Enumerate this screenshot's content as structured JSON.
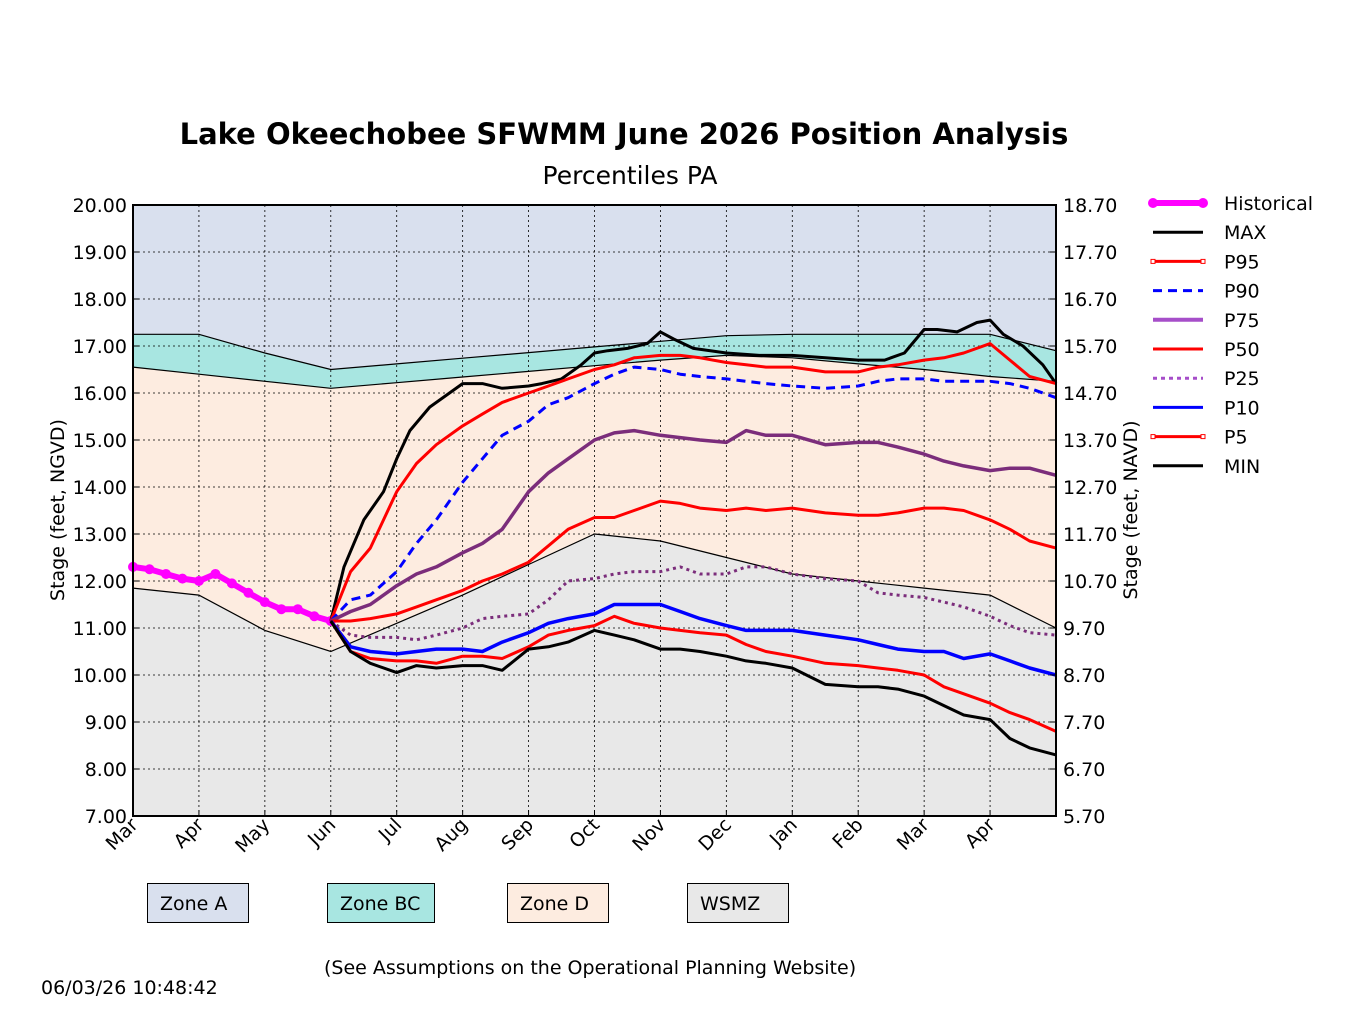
{
  "chart_data": {
    "type": "line",
    "title": "Lake Okeechobee SFWMM June 2026 Position Analysis",
    "subtitle": "Percentiles PA",
    "ylabel": "Stage (feet, NGVD)",
    "ylabel_right": "Stage (feet, NAVD)",
    "ylim": [
      7.0,
      20.0
    ],
    "ylim_right": [
      5.7,
      18.7
    ],
    "yticks": [
      "7.00",
      "8.00",
      "9.00",
      "10.00",
      "11.00",
      "12.00",
      "13.00",
      "14.00",
      "15.00",
      "16.00",
      "17.00",
      "18.00",
      "19.00",
      "20.00"
    ],
    "yticks_right": [
      "5.70",
      "6.70",
      "7.70",
      "8.70",
      "9.70",
      "10.70",
      "11.70",
      "12.70",
      "13.70",
      "14.70",
      "15.70",
      "16.70",
      "17.70",
      "18.70"
    ],
    "xticks": [
      "Mar",
      "Apr",
      "May",
      "Jun",
      "Jul",
      "Aug",
      "Sep",
      "Oct",
      "Nov",
      "Dec",
      "Jan",
      "Feb",
      "Mar",
      "Apr"
    ],
    "xlim": [
      0,
      14
    ],
    "grid": true,
    "legend_position": "right",
    "zones": {
      "x": [
        0,
        1,
        2,
        3,
        4,
        5,
        6,
        7,
        8,
        9,
        10,
        11,
        12,
        13,
        14
      ],
      "zone_a_bottom": [
        17.25,
        17.25,
        16.85,
        16.5,
        16.62,
        16.74,
        16.86,
        16.98,
        17.1,
        17.22,
        17.25,
        17.25,
        17.25,
        17.25,
        16.9
      ],
      "zone_bc_bottom": [
        16.55,
        16.4,
        16.25,
        16.1,
        16.22,
        16.34,
        16.46,
        16.58,
        16.7,
        16.8,
        16.75,
        16.62,
        16.5,
        16.35,
        16.25
      ],
      "zone_d_bottom": [
        11.85,
        11.7,
        10.95,
        10.5,
        11.1,
        11.7,
        12.35,
        13.0,
        12.85,
        12.5,
        12.15,
        12.0,
        11.85,
        11.7,
        11.0
      ]
    },
    "zone_legend": [
      "Zone A",
      "Zone BC",
      "Zone D",
      "WSMZ"
    ],
    "series": [
      {
        "name": "Historical",
        "color": "#ff00ff",
        "x": [
          0,
          0.25,
          0.5,
          0.75,
          1,
          1.25,
          1.5,
          1.75,
          2,
          2.25,
          2.5,
          2.75,
          3
        ],
        "values": [
          12.3,
          12.25,
          12.15,
          12.05,
          12.0,
          12.15,
          11.95,
          11.75,
          11.55,
          11.4,
          11.4,
          11.25,
          11.15
        ]
      },
      {
        "name": "MAX",
        "color": "#000000",
        "x": [
          3,
          3.2,
          3.5,
          3.8,
          4,
          4.2,
          4.5,
          4.8,
          5,
          5.3,
          5.6,
          6,
          6.2,
          6.5,
          6.8,
          7,
          7.2,
          7.5,
          7.8,
          8,
          8.2,
          8.5,
          9,
          9.5,
          10,
          10.5,
          11,
          11.4,
          11.7,
          12,
          12.2,
          12.5,
          12.8,
          13,
          13.2,
          13.5,
          13.8,
          14
        ],
        "values": [
          11.15,
          12.3,
          13.3,
          13.9,
          14.6,
          15.2,
          15.7,
          16.0,
          16.2,
          16.2,
          16.1,
          16.15,
          16.2,
          16.3,
          16.6,
          16.85,
          16.9,
          16.95,
          17.05,
          17.3,
          17.15,
          16.95,
          16.85,
          16.8,
          16.8,
          16.75,
          16.7,
          16.7,
          16.85,
          17.35,
          17.35,
          17.3,
          17.5,
          17.55,
          17.25,
          17.0,
          16.6,
          16.2
        ]
      },
      {
        "name": "P95",
        "color": "#ff0000",
        "x": [
          3,
          3.3,
          3.6,
          4,
          4.3,
          4.6,
          5,
          5.3,
          5.6,
          6,
          6.3,
          6.6,
          7,
          7.3,
          7.6,
          8,
          8.3,
          8.6,
          9,
          9.3,
          9.6,
          10,
          10.5,
          11,
          11.3,
          11.6,
          12,
          12.3,
          12.6,
          13,
          13.3,
          13.6,
          14
        ],
        "values": [
          11.15,
          12.2,
          12.7,
          13.9,
          14.5,
          14.9,
          15.3,
          15.55,
          15.8,
          16.0,
          16.15,
          16.3,
          16.5,
          16.6,
          16.75,
          16.8,
          16.8,
          16.75,
          16.65,
          16.6,
          16.55,
          16.55,
          16.45,
          16.45,
          16.55,
          16.6,
          16.7,
          16.75,
          16.85,
          17.05,
          16.7,
          16.35,
          16.2
        ]
      },
      {
        "name": "P90",
        "color": "#0000ff",
        "x": [
          3,
          3.3,
          3.6,
          4,
          4.3,
          4.6,
          5,
          5.3,
          5.6,
          6,
          6.3,
          6.6,
          7,
          7.3,
          7.6,
          8,
          8.3,
          8.6,
          9,
          9.3,
          9.6,
          10,
          10.5,
          11,
          11.3,
          11.6,
          12,
          12.3,
          12.6,
          13,
          13.3,
          13.6,
          14
        ],
        "values": [
          11.15,
          11.6,
          11.7,
          12.2,
          12.8,
          13.3,
          14.1,
          14.6,
          15.1,
          15.4,
          15.75,
          15.9,
          16.2,
          16.4,
          16.55,
          16.5,
          16.4,
          16.35,
          16.3,
          16.25,
          16.2,
          16.15,
          16.1,
          16.15,
          16.25,
          16.3,
          16.3,
          16.25,
          16.25,
          16.25,
          16.2,
          16.1,
          15.9
        ]
      },
      {
        "name": "P75",
        "color": "#7b2d7b",
        "x": [
          3,
          3.3,
          3.6,
          4,
          4.3,
          4.6,
          5,
          5.3,
          5.6,
          6,
          6.3,
          6.6,
          7,
          7.3,
          7.6,
          8,
          8.3,
          8.6,
          9,
          9.3,
          9.6,
          10,
          10.5,
          11,
          11.3,
          11.6,
          12,
          12.3,
          12.6,
          13,
          13.3,
          13.6,
          14
        ],
        "values": [
          11.15,
          11.35,
          11.5,
          11.9,
          12.15,
          12.3,
          12.6,
          12.8,
          13.1,
          13.9,
          14.3,
          14.6,
          15.0,
          15.15,
          15.2,
          15.1,
          15.05,
          15.0,
          14.95,
          15.2,
          15.1,
          15.1,
          14.9,
          14.95,
          14.95,
          14.85,
          14.7,
          14.55,
          14.45,
          14.35,
          14.4,
          14.4,
          14.25
        ]
      },
      {
        "name": "P50",
        "color": "#ff0000",
        "x": [
          3,
          3.3,
          3.6,
          4,
          4.3,
          4.6,
          5,
          5.3,
          5.6,
          6,
          6.3,
          6.6,
          7,
          7.3,
          7.6,
          8,
          8.3,
          8.6,
          9,
          9.3,
          9.6,
          10,
          10.5,
          11,
          11.3,
          11.6,
          12,
          12.3,
          12.6,
          13,
          13.3,
          13.6,
          14
        ],
        "values": [
          11.15,
          11.15,
          11.2,
          11.3,
          11.45,
          11.6,
          11.8,
          12.0,
          12.15,
          12.4,
          12.75,
          13.1,
          13.35,
          13.35,
          13.5,
          13.7,
          13.65,
          13.55,
          13.5,
          13.55,
          13.5,
          13.55,
          13.45,
          13.4,
          13.4,
          13.45,
          13.55,
          13.55,
          13.5,
          13.3,
          13.1,
          12.85,
          12.7
        ]
      },
      {
        "name": "P25",
        "color": "#7b2d7b",
        "x": [
          3,
          3.3,
          3.6,
          4,
          4.3,
          4.6,
          5,
          5.3,
          5.6,
          6,
          6.3,
          6.6,
          7,
          7.3,
          7.6,
          8,
          8.3,
          8.6,
          9,
          9.3,
          9.6,
          10,
          10.5,
          11,
          11.3,
          11.6,
          12,
          12.3,
          12.6,
          13,
          13.3,
          13.6,
          14
        ],
        "values": [
          11.15,
          10.85,
          10.8,
          10.8,
          10.75,
          10.85,
          11.0,
          11.2,
          11.25,
          11.3,
          11.6,
          12.0,
          12.05,
          12.15,
          12.2,
          12.2,
          12.3,
          12.15,
          12.15,
          12.3,
          12.3,
          12.15,
          12.05,
          12.0,
          11.75,
          11.7,
          11.65,
          11.55,
          11.45,
          11.25,
          11.05,
          10.9,
          10.85
        ]
      },
      {
        "name": "P10",
        "color": "#0000ff",
        "x": [
          3,
          3.3,
          3.6,
          4,
          4.3,
          4.6,
          5,
          5.3,
          5.6,
          6,
          6.3,
          6.6,
          7,
          7.3,
          7.6,
          8,
          8.3,
          8.6,
          9,
          9.3,
          9.6,
          10,
          10.5,
          11,
          11.3,
          11.6,
          12,
          12.3,
          12.6,
          13,
          13.3,
          13.6,
          14
        ],
        "values": [
          11.15,
          10.6,
          10.5,
          10.45,
          10.5,
          10.55,
          10.55,
          10.5,
          10.7,
          10.9,
          11.1,
          11.2,
          11.3,
          11.5,
          11.5,
          11.5,
          11.35,
          11.2,
          11.05,
          10.95,
          10.95,
          10.95,
          10.85,
          10.75,
          10.65,
          10.55,
          10.5,
          10.5,
          10.35,
          10.45,
          10.3,
          10.15,
          10.0
        ]
      },
      {
        "name": "P5",
        "color": "#ff0000",
        "x": [
          3,
          3.3,
          3.6,
          4,
          4.3,
          4.6,
          5,
          5.3,
          5.6,
          6,
          6.3,
          6.6,
          7,
          7.3,
          7.6,
          8,
          8.3,
          8.6,
          9,
          9.3,
          9.6,
          10,
          10.5,
          11,
          11.3,
          11.6,
          12,
          12.3,
          12.6,
          13,
          13.3,
          13.6,
          14
        ],
        "values": [
          11.15,
          10.5,
          10.35,
          10.3,
          10.3,
          10.25,
          10.4,
          10.4,
          10.35,
          10.6,
          10.85,
          10.95,
          11.05,
          11.25,
          11.1,
          11.0,
          10.95,
          10.9,
          10.85,
          10.65,
          10.5,
          10.4,
          10.25,
          10.2,
          10.15,
          10.1,
          10.0,
          9.75,
          9.6,
          9.4,
          9.2,
          9.05,
          8.8
        ]
      },
      {
        "name": "MIN",
        "color": "#000000",
        "x": [
          3,
          3.3,
          3.6,
          4,
          4.3,
          4.6,
          5,
          5.3,
          5.6,
          6,
          6.3,
          6.6,
          7,
          7.3,
          7.6,
          8,
          8.3,
          8.6,
          9,
          9.3,
          9.6,
          10,
          10.5,
          11,
          11.3,
          11.6,
          12,
          12.3,
          12.6,
          13,
          13.3,
          13.6,
          14
        ],
        "values": [
          11.15,
          10.5,
          10.25,
          10.05,
          10.2,
          10.15,
          10.2,
          10.2,
          10.1,
          10.55,
          10.6,
          10.7,
          10.95,
          10.85,
          10.75,
          10.55,
          10.55,
          10.5,
          10.4,
          10.3,
          10.25,
          10.15,
          9.8,
          9.75,
          9.75,
          9.7,
          9.55,
          9.35,
          9.15,
          9.05,
          8.65,
          8.45,
          8.3
        ]
      }
    ]
  },
  "footer": {
    "note": "(See Assumptions on the Operational Planning Website)",
    "timestamp": "06/03/26 10:48:42"
  },
  "colors": {
    "zone_a": "#d9e0ee",
    "zone_bc": "#a8e6e1",
    "zone_d": "#fdece0",
    "wsmz": "#e8e8e8"
  }
}
